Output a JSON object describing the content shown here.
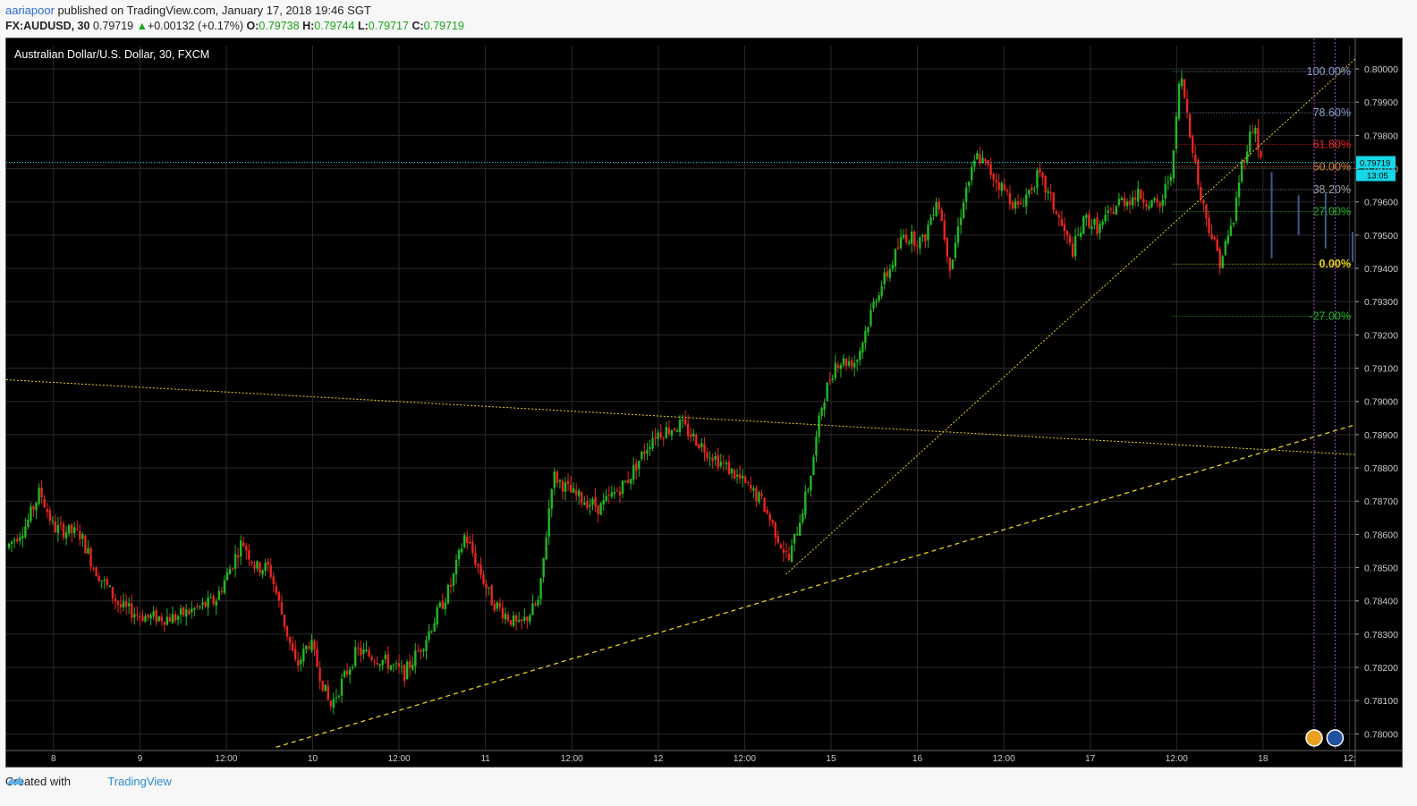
{
  "header": {
    "user": "aariapoor",
    "published": " published on TradingView.com, January 17, 2018 19:46 SGT",
    "symbol": "FX:AUDUSD, 30",
    "last": "0.79719",
    "change": "+0.00132 (+0.17%)",
    "open_label": "O:",
    "open": "0.79738",
    "high_label": "H:",
    "high": "0.79744",
    "low_label": "L:",
    "low": "0.79717",
    "close_label": "C:",
    "close": "0.79719"
  },
  "footer": {
    "created_with": "Created with",
    "brand": "TradingView"
  },
  "colors": {
    "bg": "#000000",
    "up": "#22b822",
    "down": "#e8261e",
    "grid": "#2a2a2a",
    "trend": "#e6d21e",
    "price_line": "#17d7e6"
  },
  "chart_data": {
    "type": "candlestick",
    "title": "Australian Dollar/U.S. Dollar, 30, FXCM",
    "ylim": [
      0.7795,
      0.8007
    ],
    "y_ticks": [
      "0.80000",
      "0.79900",
      "0.79800",
      "0.79700",
      "0.79600",
      "0.79500",
      "0.79400",
      "0.79300",
      "0.79200",
      "0.79100",
      "0.79000",
      "0.78900",
      "0.78800",
      "0.78700",
      "0.78600",
      "0.78500",
      "0.78400",
      "0.78300",
      "0.78200",
      "0.78100",
      "0.78000"
    ],
    "x_ticks": [
      "8",
      "9",
      "12:00",
      "10",
      "12:00",
      "11",
      "12:00",
      "12",
      "12:00",
      "15",
      "16",
      "12:00",
      "17",
      "12:00",
      "18",
      "12:"
    ],
    "current_price": "0.79719",
    "countdown": "13:05",
    "fibonacci": [
      {
        "label": "100.00%",
        "price": 0.79992,
        "color": "#8aa0c8"
      },
      {
        "label": "78.60%",
        "price": 0.79868,
        "color": "#8aa0c8"
      },
      {
        "label": "61.80%",
        "price": 0.79773,
        "color": "#e8261e"
      },
      {
        "label": "50.00%",
        "price": 0.79705,
        "color": "#d8893a"
      },
      {
        "label": "38.20%",
        "price": 0.79637,
        "color": "#a0a0a0"
      },
      {
        "label": "27.00%",
        "price": 0.79571,
        "color": "#22b822"
      },
      {
        "label": "0.00%",
        "price": 0.79413,
        "color": "#e6d21e"
      },
      {
        "label": "-27.00%",
        "price": 0.79256,
        "color": "#22b822"
      }
    ],
    "path_points": [
      [
        0.0,
        0.7856
      ],
      [
        0.015,
        0.7863
      ],
      [
        0.025,
        0.7873
      ],
      [
        0.035,
        0.7862
      ],
      [
        0.055,
        0.786
      ],
      [
        0.065,
        0.785
      ],
      [
        0.085,
        0.7838
      ],
      [
        0.105,
        0.7835
      ],
      [
        0.125,
        0.7835
      ],
      [
        0.155,
        0.784
      ],
      [
        0.175,
        0.7858
      ],
      [
        0.185,
        0.785
      ],
      [
        0.195,
        0.785
      ],
      [
        0.215,
        0.782
      ],
      [
        0.225,
        0.7828
      ],
      [
        0.24,
        0.7808
      ],
      [
        0.26,
        0.7825
      ],
      [
        0.28,
        0.7822
      ],
      [
        0.295,
        0.7818
      ],
      [
        0.31,
        0.7828
      ],
      [
        0.33,
        0.7845
      ],
      [
        0.34,
        0.786
      ],
      [
        0.36,
        0.784
      ],
      [
        0.38,
        0.7832
      ],
      [
        0.395,
        0.784
      ],
      [
        0.405,
        0.7878
      ],
      [
        0.42,
        0.7872
      ],
      [
        0.44,
        0.7868
      ],
      [
        0.46,
        0.7876
      ],
      [
        0.48,
        0.789
      ],
      [
        0.5,
        0.7893
      ],
      [
        0.52,
        0.7885
      ],
      [
        0.54,
        0.7878
      ],
      [
        0.56,
        0.787
      ],
      [
        0.58,
        0.7852
      ],
      [
        0.595,
        0.7875
      ],
      [
        0.605,
        0.79
      ],
      [
        0.615,
        0.7912
      ],
      [
        0.63,
        0.7912
      ],
      [
        0.645,
        0.7932
      ],
      [
        0.655,
        0.794
      ],
      [
        0.665,
        0.795
      ],
      [
        0.68,
        0.7948
      ],
      [
        0.69,
        0.7962
      ],
      [
        0.7,
        0.794
      ],
      [
        0.71,
        0.7962
      ],
      [
        0.72,
        0.7974
      ],
      [
        0.735,
        0.7966
      ],
      [
        0.75,
        0.7958
      ],
      [
        0.765,
        0.7968
      ],
      [
        0.775,
        0.796
      ],
      [
        0.79,
        0.7945
      ],
      [
        0.8,
        0.7955
      ],
      [
        0.81,
        0.7952
      ],
      [
        0.825,
        0.796
      ],
      [
        0.84,
        0.7962
      ],
      [
        0.855,
        0.7958
      ],
      [
        0.865,
        0.7972
      ],
      [
        0.87,
        0.7999
      ],
      [
        0.875,
        0.7988
      ],
      [
        0.885,
        0.7962
      ],
      [
        0.895,
        0.7948
      ],
      [
        0.9,
        0.7942
      ],
      [
        0.91,
        0.7955
      ],
      [
        0.915,
        0.797
      ],
      [
        0.925,
        0.7984
      ],
      [
        0.93,
        0.7972
      ]
    ],
    "volume_bars": [
      {
        "x": 0.938,
        "top": 0.7969,
        "bottom": 0.7943
      },
      {
        "x": 0.958,
        "top": 0.7962,
        "bottom": 0.795
      },
      {
        "x": 0.978,
        "top": 0.7963,
        "bottom": 0.7946
      },
      {
        "x": 0.998,
        "top": 0.7951,
        "bottom": 0.7942
      }
    ]
  }
}
